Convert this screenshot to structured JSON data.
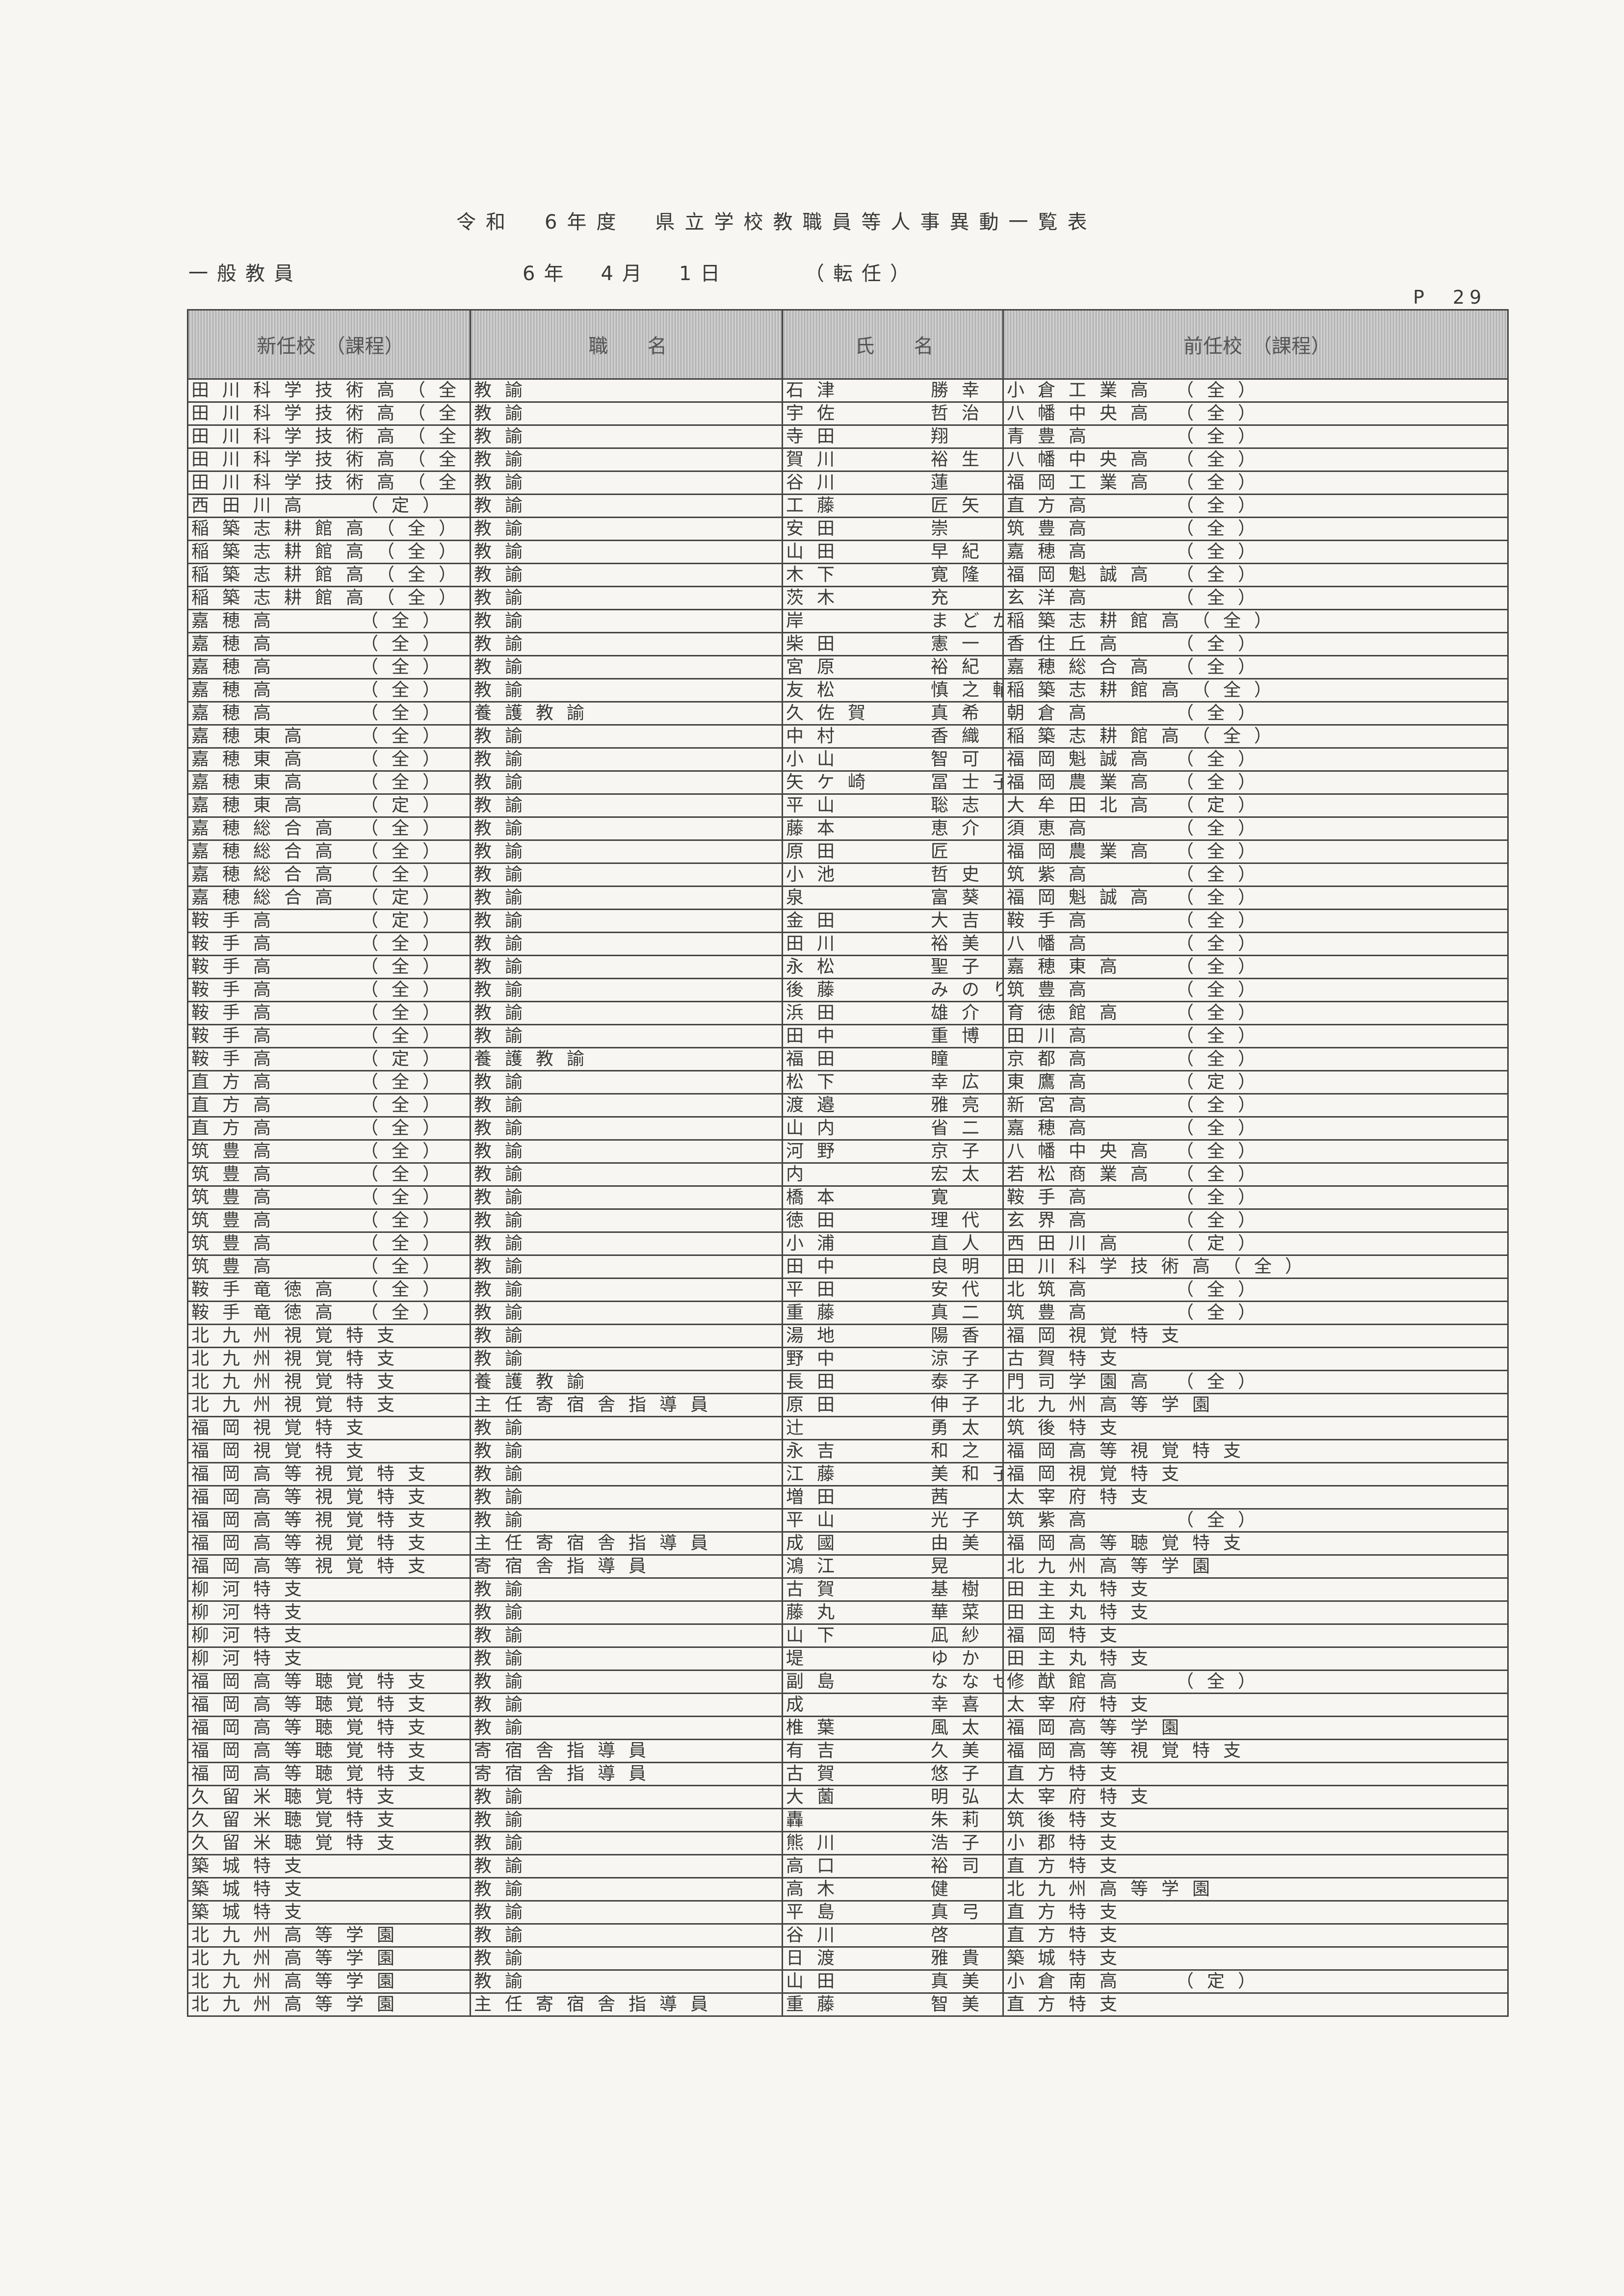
{
  "title": "令和　6年度　県立学校教職員等人事異動一覧表",
  "category": "一般教員",
  "date": "6年　4月　1日",
  "type": "（転任）",
  "page": "P　29",
  "headers": [
    "新任校　（課程）",
    "職　　名",
    "氏　　名",
    "前任校　（課程）"
  ],
  "rows": [
    {
      "new": "田川科学技術高",
      "nc": "（全",
      "pos": "教諭",
      "sur": "石津",
      "given": "勝幸",
      "prev": "小倉工業高",
      "pc": "（全）"
    },
    {
      "new": "田川科学技術高",
      "nc": "（全",
      "pos": "教諭",
      "sur": "宇佐",
      "given": "哲治",
      "prev": "八幡中央高",
      "pc": "（全）"
    },
    {
      "new": "田川科学技術高",
      "nc": "（全",
      "pos": "教諭",
      "sur": "寺田",
      "given": "翔",
      "prev": "青豊高",
      "pc": "（全）"
    },
    {
      "new": "田川科学技術高",
      "nc": "（全",
      "pos": "教諭",
      "sur": "賀川",
      "given": "裕生",
      "prev": "八幡中央高",
      "pc": "（全）"
    },
    {
      "new": "田川科学技術高",
      "nc": "（全",
      "pos": "教諭",
      "sur": "谷川",
      "given": "蓮",
      "prev": "福岡工業高",
      "pc": "（全）"
    },
    {
      "new": "西田川高",
      "nc": "（定）",
      "pos": "教諭",
      "sur": "工藤",
      "given": "匠矢",
      "prev": "直方高",
      "pc": "（全）"
    },
    {
      "new": "稲築志耕館高",
      "nc": "（全）",
      "pos": "教諭",
      "sur": "安田",
      "given": "崇",
      "prev": "筑豊高",
      "pc": "（全）"
    },
    {
      "new": "稲築志耕館高",
      "nc": "（全）",
      "pos": "教諭",
      "sur": "山田",
      "given": "早紀",
      "prev": "嘉穂高",
      "pc": "（全）"
    },
    {
      "new": "稲築志耕館高",
      "nc": "（全）",
      "pos": "教諭",
      "sur": "木下",
      "given": "寛隆",
      "prev": "福岡魁誠高",
      "pc": "（全）"
    },
    {
      "new": "稲築志耕館高",
      "nc": "（全）",
      "pos": "教諭",
      "sur": "茨木",
      "given": "充",
      "prev": "玄洋高",
      "pc": "（全）"
    },
    {
      "new": "嘉穂高",
      "nc": "（全）",
      "pos": "教諭",
      "sur": "岸",
      "given": "まどか",
      "prev": "稲築志耕館高",
      "pc": "（全）"
    },
    {
      "new": "嘉穂高",
      "nc": "（全）",
      "pos": "教諭",
      "sur": "柴田",
      "given": "憲一",
      "prev": "香住丘高",
      "pc": "（全）"
    },
    {
      "new": "嘉穂高",
      "nc": "（全）",
      "pos": "教諭",
      "sur": "宮原",
      "given": "裕紀",
      "prev": "嘉穂総合高",
      "pc": "（全）"
    },
    {
      "new": "嘉穂高",
      "nc": "（全）",
      "pos": "教諭",
      "sur": "友松",
      "given": "慎之輔",
      "prev": "稲築志耕館高",
      "pc": "（全）"
    },
    {
      "new": "嘉穂高",
      "nc": "（全）",
      "pos": "養護教諭",
      "sur": "久佐賀",
      "given": "真希",
      "prev": "朝倉高",
      "pc": "（全）"
    },
    {
      "new": "嘉穂東高",
      "nc": "（全）",
      "pos": "教諭",
      "sur": "中村",
      "given": "香織",
      "prev": "稲築志耕館高",
      "pc": "（全）"
    },
    {
      "new": "嘉穂東高",
      "nc": "（全）",
      "pos": "教諭",
      "sur": "小山",
      "given": "智可",
      "prev": "福岡魁誠高",
      "pc": "（全）"
    },
    {
      "new": "嘉穂東高",
      "nc": "（全）",
      "pos": "教諭",
      "sur": "矢ケ崎",
      "given": "冨士子",
      "prev": "福岡農業高",
      "pc": "（全）"
    },
    {
      "new": "嘉穂東高",
      "nc": "（定）",
      "pos": "教諭",
      "sur": "平山",
      "given": "聡志",
      "prev": "大牟田北高",
      "pc": "（定）"
    },
    {
      "new": "嘉穂総合高",
      "nc": "（全）",
      "pos": "教諭",
      "sur": "藤本",
      "given": "恵介",
      "prev": "須恵高",
      "pc": "（全）"
    },
    {
      "new": "嘉穂総合高",
      "nc": "（全）",
      "pos": "教諭",
      "sur": "原田",
      "given": "匠",
      "prev": "福岡農業高",
      "pc": "（全）"
    },
    {
      "new": "嘉穂総合高",
      "nc": "（全）",
      "pos": "教諭",
      "sur": "小池",
      "given": "哲史",
      "prev": "筑紫高",
      "pc": "（全）"
    },
    {
      "new": "嘉穂総合高",
      "nc": "（定）",
      "pos": "教諭",
      "sur": "泉",
      "given": "富葵",
      "prev": "福岡魁誠高",
      "pc": "（全）"
    },
    {
      "new": "鞍手高",
      "nc": "（定）",
      "pos": "教諭",
      "sur": "金田",
      "given": "大吉",
      "prev": "鞍手高",
      "pc": "（全）"
    },
    {
      "new": "鞍手高",
      "nc": "（全）",
      "pos": "教諭",
      "sur": "田川",
      "given": "裕美",
      "prev": "八幡高",
      "pc": "（全）"
    },
    {
      "new": "鞍手高",
      "nc": "（全）",
      "pos": "教諭",
      "sur": "永松",
      "given": "聖子",
      "prev": "嘉穂東高",
      "pc": "（全）"
    },
    {
      "new": "鞍手高",
      "nc": "（全）",
      "pos": "教諭",
      "sur": "後藤",
      "given": "みのり",
      "prev": "筑豊高",
      "pc": "（全）"
    },
    {
      "new": "鞍手高",
      "nc": "（全）",
      "pos": "教諭",
      "sur": "浜田",
      "given": "雄介",
      "prev": "育徳館高",
      "pc": "（全）"
    },
    {
      "new": "鞍手高",
      "nc": "（全）",
      "pos": "教諭",
      "sur": "田中",
      "given": "重博",
      "prev": "田川高",
      "pc": "（全）"
    },
    {
      "new": "鞍手高",
      "nc": "（定）",
      "pos": "養護教諭",
      "sur": "福田",
      "given": "瞳",
      "prev": "京都高",
      "pc": "（全）"
    },
    {
      "new": "直方高",
      "nc": "（全）",
      "pos": "教諭",
      "sur": "松下",
      "given": "幸広",
      "prev": "東鷹高",
      "pc": "（定）"
    },
    {
      "new": "直方高",
      "nc": "（全）",
      "pos": "教諭",
      "sur": "渡邉",
      "given": "雅亮",
      "prev": "新宮高",
      "pc": "（全）"
    },
    {
      "new": "直方高",
      "nc": "（全）",
      "pos": "教諭",
      "sur": "山内",
      "given": "省二",
      "prev": "嘉穂高",
      "pc": "（全）"
    },
    {
      "new": "筑豊高",
      "nc": "（全）",
      "pos": "教諭",
      "sur": "河野",
      "given": "京子",
      "prev": "八幡中央高",
      "pc": "（全）"
    },
    {
      "new": "筑豊高",
      "nc": "（全）",
      "pos": "教諭",
      "sur": "内",
      "given": "宏太",
      "prev": "若松商業高",
      "pc": "（全）"
    },
    {
      "new": "筑豊高",
      "nc": "（全）",
      "pos": "教諭",
      "sur": "橋本",
      "given": "寛",
      "prev": "鞍手高",
      "pc": "（全）"
    },
    {
      "new": "筑豊高",
      "nc": "（全）",
      "pos": "教諭",
      "sur": "徳田",
      "given": "理代",
      "prev": "玄界高",
      "pc": "（全）"
    },
    {
      "new": "筑豊高",
      "nc": "（全）",
      "pos": "教諭",
      "sur": "小浦",
      "given": "直人",
      "prev": "西田川高",
      "pc": "（定）"
    },
    {
      "new": "筑豊高",
      "nc": "（全）",
      "pos": "教諭",
      "sur": "田中",
      "given": "良明",
      "prev": "田川科学技術高",
      "pc": "（全）"
    },
    {
      "new": "鞍手竜徳高",
      "nc": "（全）",
      "pos": "教諭",
      "sur": "平田",
      "given": "安代",
      "prev": "北筑高",
      "pc": "（全）"
    },
    {
      "new": "鞍手竜徳高",
      "nc": "（全）",
      "pos": "教諭",
      "sur": "重藤",
      "given": "真二",
      "prev": "筑豊高",
      "pc": "（全）"
    },
    {
      "new": "北九州視覚特支",
      "nc": "",
      "pos": "教諭",
      "sur": "湯地",
      "given": "陽香",
      "prev": "福岡視覚特支",
      "pc": ""
    },
    {
      "new": "北九州視覚特支",
      "nc": "",
      "pos": "教諭",
      "sur": "野中",
      "given": "涼子",
      "prev": "古賀特支",
      "pc": ""
    },
    {
      "new": "北九州視覚特支",
      "nc": "",
      "pos": "養護教諭",
      "sur": "長田",
      "given": "泰子",
      "prev": "門司学園高",
      "pc": "（全）"
    },
    {
      "new": "北九州視覚特支",
      "nc": "",
      "pos": "主任寄宿舎指導員",
      "sur": "原田",
      "given": "伸子",
      "prev": "北九州高等学園",
      "pc": ""
    },
    {
      "new": "福岡視覚特支",
      "nc": "",
      "pos": "教諭",
      "sur": "辻",
      "given": "勇太",
      "prev": "筑後特支",
      "pc": ""
    },
    {
      "new": "福岡視覚特支",
      "nc": "",
      "pos": "教諭",
      "sur": "永吉",
      "given": "和之",
      "prev": "福岡高等視覚特支",
      "pc": ""
    },
    {
      "new": "福岡高等視覚特支",
      "nc": "",
      "pos": "教諭",
      "sur": "江藤",
      "given": "美和子",
      "prev": "福岡視覚特支",
      "pc": ""
    },
    {
      "new": "福岡高等視覚特支",
      "nc": "",
      "pos": "教諭",
      "sur": "増田",
      "given": "茜",
      "prev": "太宰府特支",
      "pc": ""
    },
    {
      "new": "福岡高等視覚特支",
      "nc": "",
      "pos": "教諭",
      "sur": "平山",
      "given": "光子",
      "prev": "筑紫高",
      "pc": "（全）"
    },
    {
      "new": "福岡高等視覚特支",
      "nc": "",
      "pos": "主任寄宿舎指導員",
      "sur": "成國",
      "given": "由美",
      "prev": "福岡高等聴覚特支",
      "pc": ""
    },
    {
      "new": "福岡高等視覚特支",
      "nc": "",
      "pos": "寄宿舎指導員",
      "sur": "鴻江",
      "given": "晃",
      "prev": "北九州高等学園",
      "pc": ""
    },
    {
      "new": "柳河特支",
      "nc": "",
      "pos": "教諭",
      "sur": "古賀",
      "given": "基樹",
      "prev": "田主丸特支",
      "pc": ""
    },
    {
      "new": "柳河特支",
      "nc": "",
      "pos": "教諭",
      "sur": "藤丸",
      "given": "華菜",
      "prev": "田主丸特支",
      "pc": ""
    },
    {
      "new": "柳河特支",
      "nc": "",
      "pos": "教諭",
      "sur": "山下",
      "given": "凪紗",
      "prev": "福岡特支",
      "pc": ""
    },
    {
      "new": "柳河特支",
      "nc": "",
      "pos": "教諭",
      "sur": "堤",
      "given": "ゆか",
      "prev": "田主丸特支",
      "pc": ""
    },
    {
      "new": "福岡高等聴覚特支",
      "nc": "",
      "pos": "教諭",
      "sur": "副島",
      "given": "ななせ",
      "prev": "修猷館高",
      "pc": "（全）"
    },
    {
      "new": "福岡高等聴覚特支",
      "nc": "",
      "pos": "教諭",
      "sur": "成",
      "given": "幸喜",
      "prev": "太宰府特支",
      "pc": ""
    },
    {
      "new": "福岡高等聴覚特支",
      "nc": "",
      "pos": "教諭",
      "sur": "椎葉",
      "given": "風太",
      "prev": "福岡高等学園",
      "pc": ""
    },
    {
      "new": "福岡高等聴覚特支",
      "nc": "",
      "pos": "寄宿舎指導員",
      "sur": "有吉",
      "given": "久美",
      "prev": "福岡高等視覚特支",
      "pc": ""
    },
    {
      "new": "福岡高等聴覚特支",
      "nc": "",
      "pos": "寄宿舎指導員",
      "sur": "古賀",
      "given": "悠子",
      "prev": "直方特支",
      "pc": ""
    },
    {
      "new": "久留米聴覚特支",
      "nc": "",
      "pos": "教諭",
      "sur": "大薗",
      "given": "明弘",
      "prev": "太宰府特支",
      "pc": ""
    },
    {
      "new": "久留米聴覚特支",
      "nc": "",
      "pos": "教諭",
      "sur": "轟",
      "given": "朱莉",
      "prev": "筑後特支",
      "pc": ""
    },
    {
      "new": "久留米聴覚特支",
      "nc": "",
      "pos": "教諭",
      "sur": "熊川",
      "given": "浩子",
      "prev": "小郡特支",
      "pc": ""
    },
    {
      "new": "築城特支",
      "nc": "",
      "pos": "教諭",
      "sur": "高口",
      "given": "裕司",
      "prev": "直方特支",
      "pc": ""
    },
    {
      "new": "築城特支",
      "nc": "",
      "pos": "教諭",
      "sur": "高木",
      "given": "健",
      "prev": "北九州高等学園",
      "pc": ""
    },
    {
      "new": "築城特支",
      "nc": "",
      "pos": "教諭",
      "sur": "平島",
      "given": "真弓",
      "prev": "直方特支",
      "pc": ""
    },
    {
      "new": "北九州高等学園",
      "nc": "",
      "pos": "教諭",
      "sur": "谷川",
      "given": "啓",
      "prev": "直方特支",
      "pc": ""
    },
    {
      "new": "北九州高等学園",
      "nc": "",
      "pos": "教諭",
      "sur": "日渡",
      "given": "雅貴",
      "prev": "築城特支",
      "pc": ""
    },
    {
      "new": "北九州高等学園",
      "nc": "",
      "pos": "教諭",
      "sur": "山田",
      "given": "真美",
      "prev": "小倉南高",
      "pc": "（定）"
    },
    {
      "new": "北九州高等学園",
      "nc": "",
      "pos": "主任寄宿舎指導員",
      "sur": "重藤",
      "given": "智美",
      "prev": "直方特支",
      "pc": ""
    }
  ]
}
